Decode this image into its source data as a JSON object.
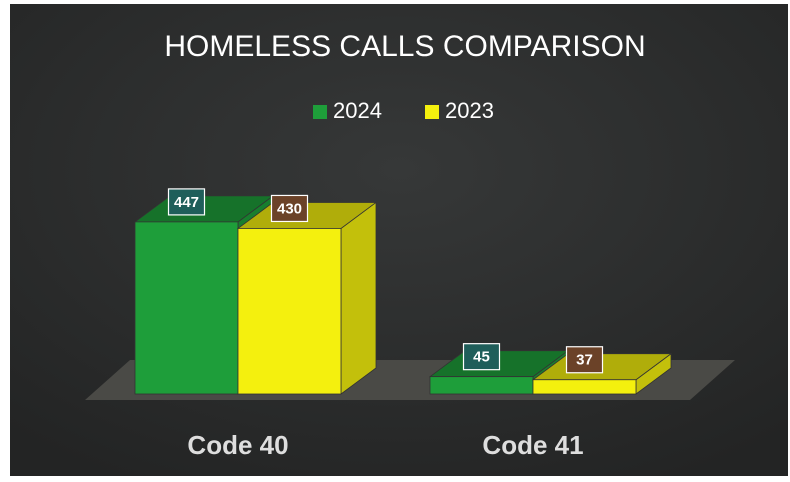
{
  "chart_data": {
    "type": "bar",
    "title": "HOMELESS CALLS COMPARISON",
    "categories": [
      "Code 40",
      "Code 41"
    ],
    "series": [
      {
        "name": "2024",
        "color": "#1e9e3a",
        "values": [
          447,
          45
        ]
      },
      {
        "name": "2023",
        "color": "#f4f00e",
        "values": [
          430,
          37
        ]
      }
    ],
    "legend": "top"
  }
}
